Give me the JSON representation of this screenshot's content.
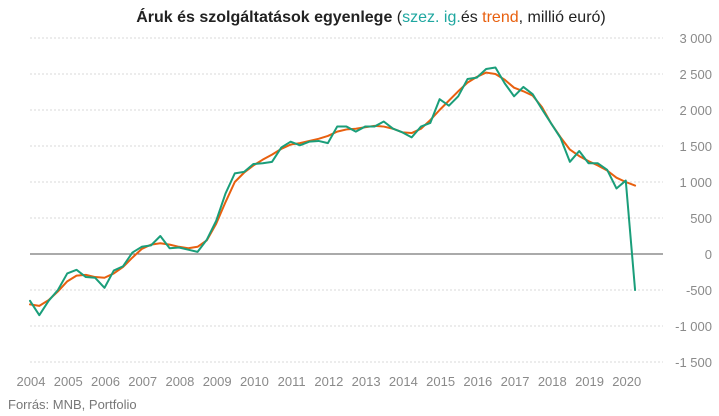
{
  "chart_data": {
    "type": "line",
    "title": {
      "main": "Áruk és szolgáltatások egyenlege",
      "open_paren": " (",
      "sa_label": "szez. ig.",
      "and_word": "és ",
      "trend_label": "trend",
      "unit": ", millió euró)"
    },
    "source": "Forrás: MNB, Portfolio",
    "xlabel": "",
    "ylabel": "",
    "ylim": [
      -1500,
      3000
    ],
    "y_ticks": [
      -1500,
      -1000,
      -500,
      0,
      500,
      1000,
      1500,
      2000,
      2500,
      3000
    ],
    "y_tick_labels": [
      "-1 500",
      "-1 000",
      "-500",
      "0",
      "500",
      "1 000",
      "1 500",
      "2 000",
      "2 500",
      "3 000"
    ],
    "xlim": [
      2004.0,
      2021.0
    ],
    "x_ticks": [
      2004,
      2005,
      2006,
      2007,
      2008,
      2009,
      2010,
      2011,
      2012,
      2013,
      2014,
      2015,
      2016,
      2017,
      2018,
      2019,
      2020
    ],
    "x_tick_labels": [
      "2004",
      "2005",
      "2006",
      "2007",
      "2008",
      "2009",
      "2010",
      "2011",
      "2012",
      "2013",
      "2014",
      "2015",
      "2016",
      "2017",
      "2018",
      "2019",
      "2020"
    ],
    "grid": true,
    "colors": {
      "sa": "#1a9e7a",
      "trend": "#e8600f"
    },
    "series": [
      {
        "name": "szez. ig.",
        "color": "#1a9e7a",
        "x": [
          2004.0,
          2004.25,
          2004.5,
          2004.75,
          2005.0,
          2005.25,
          2005.5,
          2005.75,
          2006.0,
          2006.25,
          2006.5,
          2006.75,
          2007.0,
          2007.25,
          2007.5,
          2007.75,
          2008.0,
          2008.25,
          2008.5,
          2008.75,
          2009.0,
          2009.25,
          2009.5,
          2009.75,
          2010.0,
          2010.25,
          2010.5,
          2010.75,
          2011.0,
          2011.25,
          2011.5,
          2011.75,
          2012.0,
          2012.25,
          2012.5,
          2012.75,
          2013.0,
          2013.25,
          2013.5,
          2013.75,
          2014.0,
          2014.25,
          2014.5,
          2014.75,
          2015.0,
          2015.25,
          2015.5,
          2015.75,
          2016.0,
          2016.25,
          2016.5,
          2016.75,
          2017.0,
          2017.25,
          2017.5,
          2017.75,
          2018.0,
          2018.25,
          2018.5,
          2018.75,
          2019.0,
          2019.25,
          2019.5,
          2019.75,
          2020.0,
          2020.25
        ],
        "values": [
          -650,
          -850,
          -650,
          -500,
          -270,
          -220,
          -320,
          -330,
          -470,
          -230,
          -170,
          20,
          100,
          120,
          250,
          80,
          90,
          60,
          30,
          200,
          460,
          840,
          1120,
          1140,
          1250,
          1260,
          1280,
          1480,
          1560,
          1510,
          1560,
          1570,
          1540,
          1770,
          1770,
          1700,
          1770,
          1770,
          1840,
          1740,
          1690,
          1620,
          1770,
          1820,
          2150,
          2060,
          2190,
          2430,
          2450,
          2570,
          2590,
          2370,
          2190,
          2320,
          2220,
          2010,
          1810,
          1610,
          1280,
          1430,
          1260,
          1260,
          1170,
          910,
          1020,
          -500
        ]
      },
      {
        "name": "trend",
        "color": "#e8600f",
        "x": [
          2004.0,
          2004.25,
          2004.5,
          2004.75,
          2005.0,
          2005.25,
          2005.5,
          2005.75,
          2006.0,
          2006.25,
          2006.5,
          2006.75,
          2007.0,
          2007.25,
          2007.5,
          2007.75,
          2008.0,
          2008.25,
          2008.5,
          2008.75,
          2009.0,
          2009.25,
          2009.5,
          2009.75,
          2010.0,
          2010.25,
          2010.5,
          2010.75,
          2011.0,
          2011.25,
          2011.5,
          2011.75,
          2012.0,
          2012.25,
          2012.5,
          2012.75,
          2013.0,
          2013.25,
          2013.5,
          2013.75,
          2014.0,
          2014.25,
          2014.5,
          2014.75,
          2015.0,
          2015.25,
          2015.5,
          2015.75,
          2016.0,
          2016.25,
          2016.5,
          2016.75,
          2017.0,
          2017.25,
          2017.5,
          2017.75,
          2018.0,
          2018.25,
          2018.5,
          2018.75,
          2019.0,
          2019.25,
          2019.5,
          2019.75,
          2020.0,
          2020.25
        ],
        "values": [
          -700,
          -720,
          -640,
          -520,
          -380,
          -300,
          -290,
          -320,
          -330,
          -270,
          -180,
          -50,
          70,
          130,
          150,
          130,
          100,
          80,
          100,
          190,
          420,
          720,
          1000,
          1130,
          1230,
          1310,
          1380,
          1460,
          1520,
          1540,
          1570,
          1600,
          1640,
          1700,
          1730,
          1740,
          1760,
          1780,
          1770,
          1740,
          1690,
          1680,
          1740,
          1860,
          2000,
          2130,
          2260,
          2380,
          2460,
          2520,
          2500,
          2420,
          2310,
          2260,
          2200,
          2040,
          1810,
          1620,
          1450,
          1360,
          1290,
          1230,
          1160,
          1060,
          1000,
          950
        ]
      }
    ]
  }
}
